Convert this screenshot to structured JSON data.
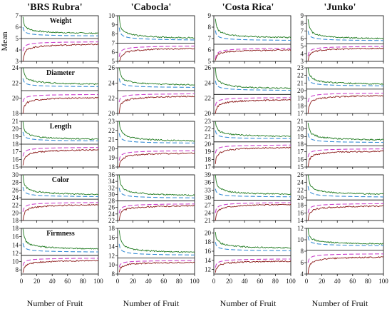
{
  "figure": {
    "x_axis_label": "Number of Fruit",
    "y_axis_label": "Mean",
    "columns": [
      "'BRS Rubra'",
      "'Cabocla'",
      "'Costa Rica'",
      "'Junko'"
    ],
    "rows": [
      "Weight",
      "Diameter",
      "Length",
      "Color",
      "Firmness"
    ]
  },
  "colors": {
    "upper_bound": "#1f7a1f",
    "lower_bound": "#8b1a1a",
    "upper_reference": "#3a8fd6",
    "lower_reference": "#cc44cc",
    "mean_line": "#000000"
  },
  "chart_data": [
    {
      "type": "line",
      "cultivar": "'BRS Rubra'",
      "variable": "Weight",
      "xlim": [
        0,
        100
      ],
      "ylim": [
        3,
        7
      ],
      "yticks": [
        3,
        4,
        5,
        6,
        7
      ],
      "xticks": [
        0,
        20,
        40,
        60,
        80,
        100
      ],
      "mean": 5.0,
      "series": [
        {
          "id": "upper",
          "start": 6.9,
          "end": 5.3
        },
        {
          "id": "upper_reference",
          "start": 6.0,
          "end": 5.15
        },
        {
          "id": "lower_reference",
          "start": 3.9,
          "end": 4.8
        },
        {
          "id": "lower",
          "start": 3.0,
          "end": 4.65
        }
      ]
    },
    {
      "type": "line",
      "cultivar": "'Cabocla'",
      "variable": "Weight",
      "xlim": [
        0,
        100
      ],
      "ylim": [
        5,
        10
      ],
      "yticks": [
        5,
        6,
        7,
        8,
        9,
        10
      ],
      "xticks": [
        0,
        20,
        40,
        60,
        80,
        100
      ],
      "mean": 7.0,
      "series": [
        {
          "id": "upper",
          "start": 10.0,
          "end": 7.3
        },
        {
          "id": "upper_reference",
          "start": 8.7,
          "end": 7.2
        },
        {
          "id": "lower_reference",
          "start": 5.5,
          "end": 6.8
        },
        {
          "id": "lower",
          "start": 4.6,
          "end": 6.6
        }
      ]
    },
    {
      "type": "line",
      "cultivar": "'Costa Rica'",
      "variable": "Weight",
      "xlim": [
        0,
        100
      ],
      "ylim": [
        5,
        9
      ],
      "yticks": [
        5,
        6,
        7,
        8,
        9
      ],
      "xticks": [
        0,
        20,
        40,
        60,
        80,
        100
      ],
      "mean": 6.5,
      "series": [
        {
          "id": "upper",
          "start": 8.8,
          "end": 6.9
        },
        {
          "id": "upper_reference",
          "start": 7.7,
          "end": 6.75
        },
        {
          "id": "lower_reference",
          "start": 5.2,
          "end": 6.25
        },
        {
          "id": "lower",
          "start": 5.0,
          "end": 6.1
        }
      ]
    },
    {
      "type": "line",
      "cultivar": "'Junko'",
      "variable": "Weight",
      "xlim": [
        0,
        100
      ],
      "ylim": [
        3,
        9
      ],
      "yticks": [
        3,
        4,
        5,
        6,
        7,
        8,
        9
      ],
      "xticks": [
        0,
        20,
        40,
        60,
        80,
        100
      ],
      "mean": 5.3,
      "series": [
        {
          "id": "upper",
          "start": 8.7,
          "end": 5.7
        },
        {
          "id": "upper_reference",
          "start": 7.0,
          "end": 5.6
        },
        {
          "id": "lower_reference",
          "start": 3.7,
          "end": 5.1
        },
        {
          "id": "lower",
          "start": 3.0,
          "end": 4.9
        }
      ]
    },
    {
      "type": "line",
      "cultivar": "'BRS Rubra'",
      "variable": "Diameter",
      "xlim": [
        0,
        100
      ],
      "ylim": [
        18,
        24
      ],
      "yticks": [
        18,
        20,
        22,
        24
      ],
      "xticks": [
        0,
        20,
        40,
        60,
        80,
        100
      ],
      "mean": 21.0,
      "series": [
        {
          "id": "upper",
          "start": 24.2,
          "end": 21.6
        },
        {
          "id": "upper_reference",
          "start": 22.6,
          "end": 21.4
        },
        {
          "id": "lower_reference",
          "start": 19.5,
          "end": 20.6
        },
        {
          "id": "lower",
          "start": 18.0,
          "end": 20.3
        }
      ]
    },
    {
      "type": "line",
      "cultivar": "'Cabocla'",
      "variable": "Diameter",
      "xlim": [
        0,
        100
      ],
      "ylim": [
        20,
        26
      ],
      "yticks": [
        20,
        22,
        24,
        26
      ],
      "xticks": [
        0,
        20,
        40,
        60,
        80,
        100
      ],
      "mean": 23.0,
      "series": [
        {
          "id": "upper",
          "start": 26.2,
          "end": 23.5
        },
        {
          "id": "upper_reference",
          "start": 24.6,
          "end": 23.3
        },
        {
          "id": "lower_reference",
          "start": 21.5,
          "end": 22.7
        },
        {
          "id": "lower",
          "start": 20.0,
          "end": 22.5
        }
      ]
    },
    {
      "type": "line",
      "cultivar": "'Costa Rica'",
      "variable": "Diameter",
      "xlim": [
        0,
        100
      ],
      "ylim": [
        20,
        26
      ],
      "yticks": [
        20,
        22,
        24,
        26
      ],
      "xticks": [
        0,
        20,
        40,
        60,
        80,
        100
      ],
      "mean": 22.5,
      "series": [
        {
          "id": "upper",
          "start": 26.0,
          "end": 23.0
        },
        {
          "id": "upper_reference",
          "start": 24.3,
          "end": 22.9
        },
        {
          "id": "lower_reference",
          "start": 21.0,
          "end": 22.2
        },
        {
          "id": "lower",
          "start": 19.8,
          "end": 22.0
        }
      ]
    },
    {
      "type": "line",
      "cultivar": "'Junko'",
      "variable": "Diameter",
      "xlim": [
        0,
        100
      ],
      "ylim": [
        17,
        23
      ],
      "yticks": [
        17,
        18,
        19,
        20,
        21,
        22,
        23
      ],
      "xticks": [
        0,
        20,
        40,
        60,
        80,
        100
      ],
      "mean": 20.2,
      "series": [
        {
          "id": "upper",
          "start": 23.3,
          "end": 20.6
        },
        {
          "id": "upper_reference",
          "start": 21.8,
          "end": 20.5
        },
        {
          "id": "lower_reference",
          "start": 18.5,
          "end": 19.8
        },
        {
          "id": "lower",
          "start": 17.0,
          "end": 19.6
        }
      ]
    },
    {
      "type": "line",
      "cultivar": "'BRS Rubra'",
      "variable": "Length",
      "xlim": [
        0,
        100
      ],
      "ylim": [
        15,
        21
      ],
      "yticks": [
        15,
        16,
        17,
        18,
        19,
        20,
        21
      ],
      "xticks": [
        0,
        20,
        40,
        60,
        80,
        100
      ],
      "mean": 18.0,
      "series": [
        {
          "id": "upper",
          "start": 21.0,
          "end": 18.4
        },
        {
          "id": "upper_reference",
          "start": 19.6,
          "end": 18.3
        },
        {
          "id": "lower_reference",
          "start": 16.4,
          "end": 17.7
        },
        {
          "id": "lower",
          "start": 15.0,
          "end": 17.5
        }
      ]
    },
    {
      "type": "line",
      "cultivar": "'Cabocla'",
      "variable": "Length",
      "xlim": [
        0,
        100
      ],
      "ylim": [
        18,
        23
      ],
      "yticks": [
        18,
        19,
        20,
        21,
        22,
        23
      ],
      "xticks": [
        0,
        20,
        40,
        60,
        80,
        100
      ],
      "mean": 20.2,
      "series": [
        {
          "id": "upper",
          "start": 23.2,
          "end": 20.6
        },
        {
          "id": "upper_reference",
          "start": 21.7,
          "end": 20.5
        },
        {
          "id": "lower_reference",
          "start": 18.7,
          "end": 19.9
        },
        {
          "id": "lower",
          "start": 17.8,
          "end": 19.7
        }
      ]
    },
    {
      "type": "line",
      "cultivar": "'Costa Rica'",
      "variable": "Length",
      "xlim": [
        0,
        100
      ],
      "ylim": [
        17,
        23
      ],
      "yticks": [
        17,
        18,
        19,
        20,
        21,
        22,
        23
      ],
      "xticks": [
        0,
        20,
        40,
        60,
        80,
        100
      ],
      "mean": 20.3,
      "series": [
        {
          "id": "upper",
          "start": 23.1,
          "end": 20.8
        },
        {
          "id": "upper_reference",
          "start": 21.8,
          "end": 20.6
        },
        {
          "id": "lower_reference",
          "start": 18.8,
          "end": 20.0
        },
        {
          "id": "lower",
          "start": 17.3,
          "end": 19.8
        }
      ]
    },
    {
      "type": "line",
      "cultivar": "'Junko'",
      "variable": "Length",
      "xlim": [
        0,
        100
      ],
      "ylim": [
        15,
        21
      ],
      "yticks": [
        15,
        16,
        17,
        18,
        19,
        20,
        21
      ],
      "xticks": [
        0,
        20,
        40,
        60,
        80,
        100
      ],
      "mean": 17.8,
      "series": [
        {
          "id": "upper",
          "start": 21.0,
          "end": 18.3
        },
        {
          "id": "upper_reference",
          "start": 19.4,
          "end": 18.1
        },
        {
          "id": "lower_reference",
          "start": 16.3,
          "end": 17.5
        },
        {
          "id": "lower",
          "start": 15.0,
          "end": 17.3
        }
      ]
    },
    {
      "type": "line",
      "cultivar": "'BRS Rubra'",
      "variable": "Color",
      "xlim": [
        0,
        100
      ],
      "ylim": [
        18,
        30
      ],
      "yticks": [
        18,
        20,
        22,
        24,
        26,
        28,
        30
      ],
      "xticks": [
        0,
        20,
        40,
        60,
        80,
        100
      ],
      "mean": 23.6,
      "series": [
        {
          "id": "upper",
          "start": 30.0,
          "end": 24.3
        },
        {
          "id": "upper_reference",
          "start": 26.8,
          "end": 24.0
        },
        {
          "id": "lower_reference",
          "start": 20.3,
          "end": 23.0
        },
        {
          "id": "lower",
          "start": 18.0,
          "end": 22.6
        }
      ]
    },
    {
      "type": "line",
      "cultivar": "'Cabocla'",
      "variable": "Color",
      "xlim": [
        0,
        100
      ],
      "ylim": [
        22,
        36
      ],
      "yticks": [
        22,
        24,
        26,
        28,
        30,
        32,
        34,
        36
      ],
      "xticks": [
        0,
        20,
        40,
        60,
        80,
        100
      ],
      "mean": 28.0,
      "series": [
        {
          "id": "upper",
          "start": 36.5,
          "end": 29.0
        },
        {
          "id": "upper_reference",
          "start": 32.0,
          "end": 28.6
        },
        {
          "id": "lower_reference",
          "start": 24.2,
          "end": 27.4
        },
        {
          "id": "lower",
          "start": 22.0,
          "end": 27.0
        }
      ]
    },
    {
      "type": "line",
      "cultivar": "'Costa Rica'",
      "variable": "Color",
      "xlim": [
        0,
        100
      ],
      "ylim": [
        21,
        39
      ],
      "yticks": [
        21,
        24,
        27,
        30,
        33,
        36,
        39
      ],
      "xticks": [
        0,
        20,
        40,
        60,
        80,
        100
      ],
      "mean": 29.0,
      "series": [
        {
          "id": "upper",
          "start": 39.0,
          "end": 30.5
        },
        {
          "id": "upper_reference",
          "start": 33.5,
          "end": 30.0
        },
        {
          "id": "lower_reference",
          "start": 24.0,
          "end": 28.5
        },
        {
          "id": "lower",
          "start": 21.0,
          "end": 28.0
        }
      ]
    },
    {
      "type": "line",
      "cultivar": "'Junko'",
      "variable": "Color",
      "xlim": [
        0,
        100
      ],
      "ylim": [
        14,
        26
      ],
      "yticks": [
        14,
        16,
        18,
        20,
        22,
        24,
        26
      ],
      "xticks": [
        0,
        20,
        40,
        60,
        80,
        100
      ],
      "mean": 19.4,
      "series": [
        {
          "id": "upper",
          "start": 26.5,
          "end": 20.3
        },
        {
          "id": "upper_reference",
          "start": 23.0,
          "end": 19.9
        },
        {
          "id": "lower_reference",
          "start": 16.0,
          "end": 18.7
        },
        {
          "id": "lower",
          "start": 14.0,
          "end": 18.2
        }
      ]
    },
    {
      "type": "line",
      "cultivar": "'BRS Rubra'",
      "variable": "Firmness",
      "xlim": [
        0,
        100
      ],
      "ylim": [
        7,
        18
      ],
      "yticks": [
        8,
        10,
        12,
        14,
        16,
        18
      ],
      "xticks": [
        0,
        20,
        40,
        60,
        80,
        100
      ],
      "mean": 11.5,
      "series": [
        {
          "id": "upper",
          "start": 18.0,
          "end": 12.5
        },
        {
          "id": "upper_reference",
          "start": 14.4,
          "end": 12.1
        },
        {
          "id": "lower_reference",
          "start": 9.0,
          "end": 11.0
        },
        {
          "id": "lower",
          "start": 7.0,
          "end": 10.6
        }
      ]
    },
    {
      "type": "line",
      "cultivar": "'Cabocla'",
      "variable": "Firmness",
      "xlim": [
        0,
        100
      ],
      "ylim": [
        8,
        18
      ],
      "yticks": [
        8,
        10,
        12,
        14,
        16,
        18
      ],
      "xticks": [
        0,
        20,
        40,
        60,
        80,
        100
      ],
      "mean": 11.5,
      "series": [
        {
          "id": "upper",
          "start": 17.8,
          "end": 12.2
        },
        {
          "id": "upper_reference",
          "start": 14.6,
          "end": 11.9
        },
        {
          "id": "lower_reference",
          "start": 9.5,
          "end": 11.1
        },
        {
          "id": "lower",
          "start": 8.2,
          "end": 10.8
        }
      ]
    },
    {
      "type": "line",
      "cultivar": "'Costa Rica'",
      "variable": "Firmness",
      "xlim": [
        0,
        100
      ],
      "ylim": [
        11,
        21
      ],
      "yticks": [
        12,
        14,
        16,
        18,
        20
      ],
      "xticks": [
        0,
        20,
        40,
        60,
        80,
        100
      ],
      "mean": 15.0,
      "series": [
        {
          "id": "upper",
          "start": 20.5,
          "end": 16.3
        },
        {
          "id": "upper_reference",
          "start": 18.0,
          "end": 15.9
        },
        {
          "id": "lower_reference",
          "start": 12.4,
          "end": 14.5
        },
        {
          "id": "lower",
          "start": 11.2,
          "end": 14.1
        }
      ]
    },
    {
      "type": "line",
      "cultivar": "'Junko'",
      "variable": "Firmness",
      "xlim": [
        0,
        100
      ],
      "ylim": [
        4,
        12
      ],
      "yticks": [
        4,
        6,
        8,
        10,
        12
      ],
      "xticks": [
        0,
        20,
        40,
        60,
        80,
        100
      ],
      "mean": 8.2,
      "series": [
        {
          "id": "upper",
          "start": 12.0,
          "end": 9.0
        },
        {
          "id": "upper_reference",
          "start": 10.6,
          "end": 8.8
        },
        {
          "id": "lower_reference",
          "start": 6.0,
          "end": 7.7
        },
        {
          "id": "lower",
          "start": 4.0,
          "end": 7.3
        }
      ]
    }
  ]
}
